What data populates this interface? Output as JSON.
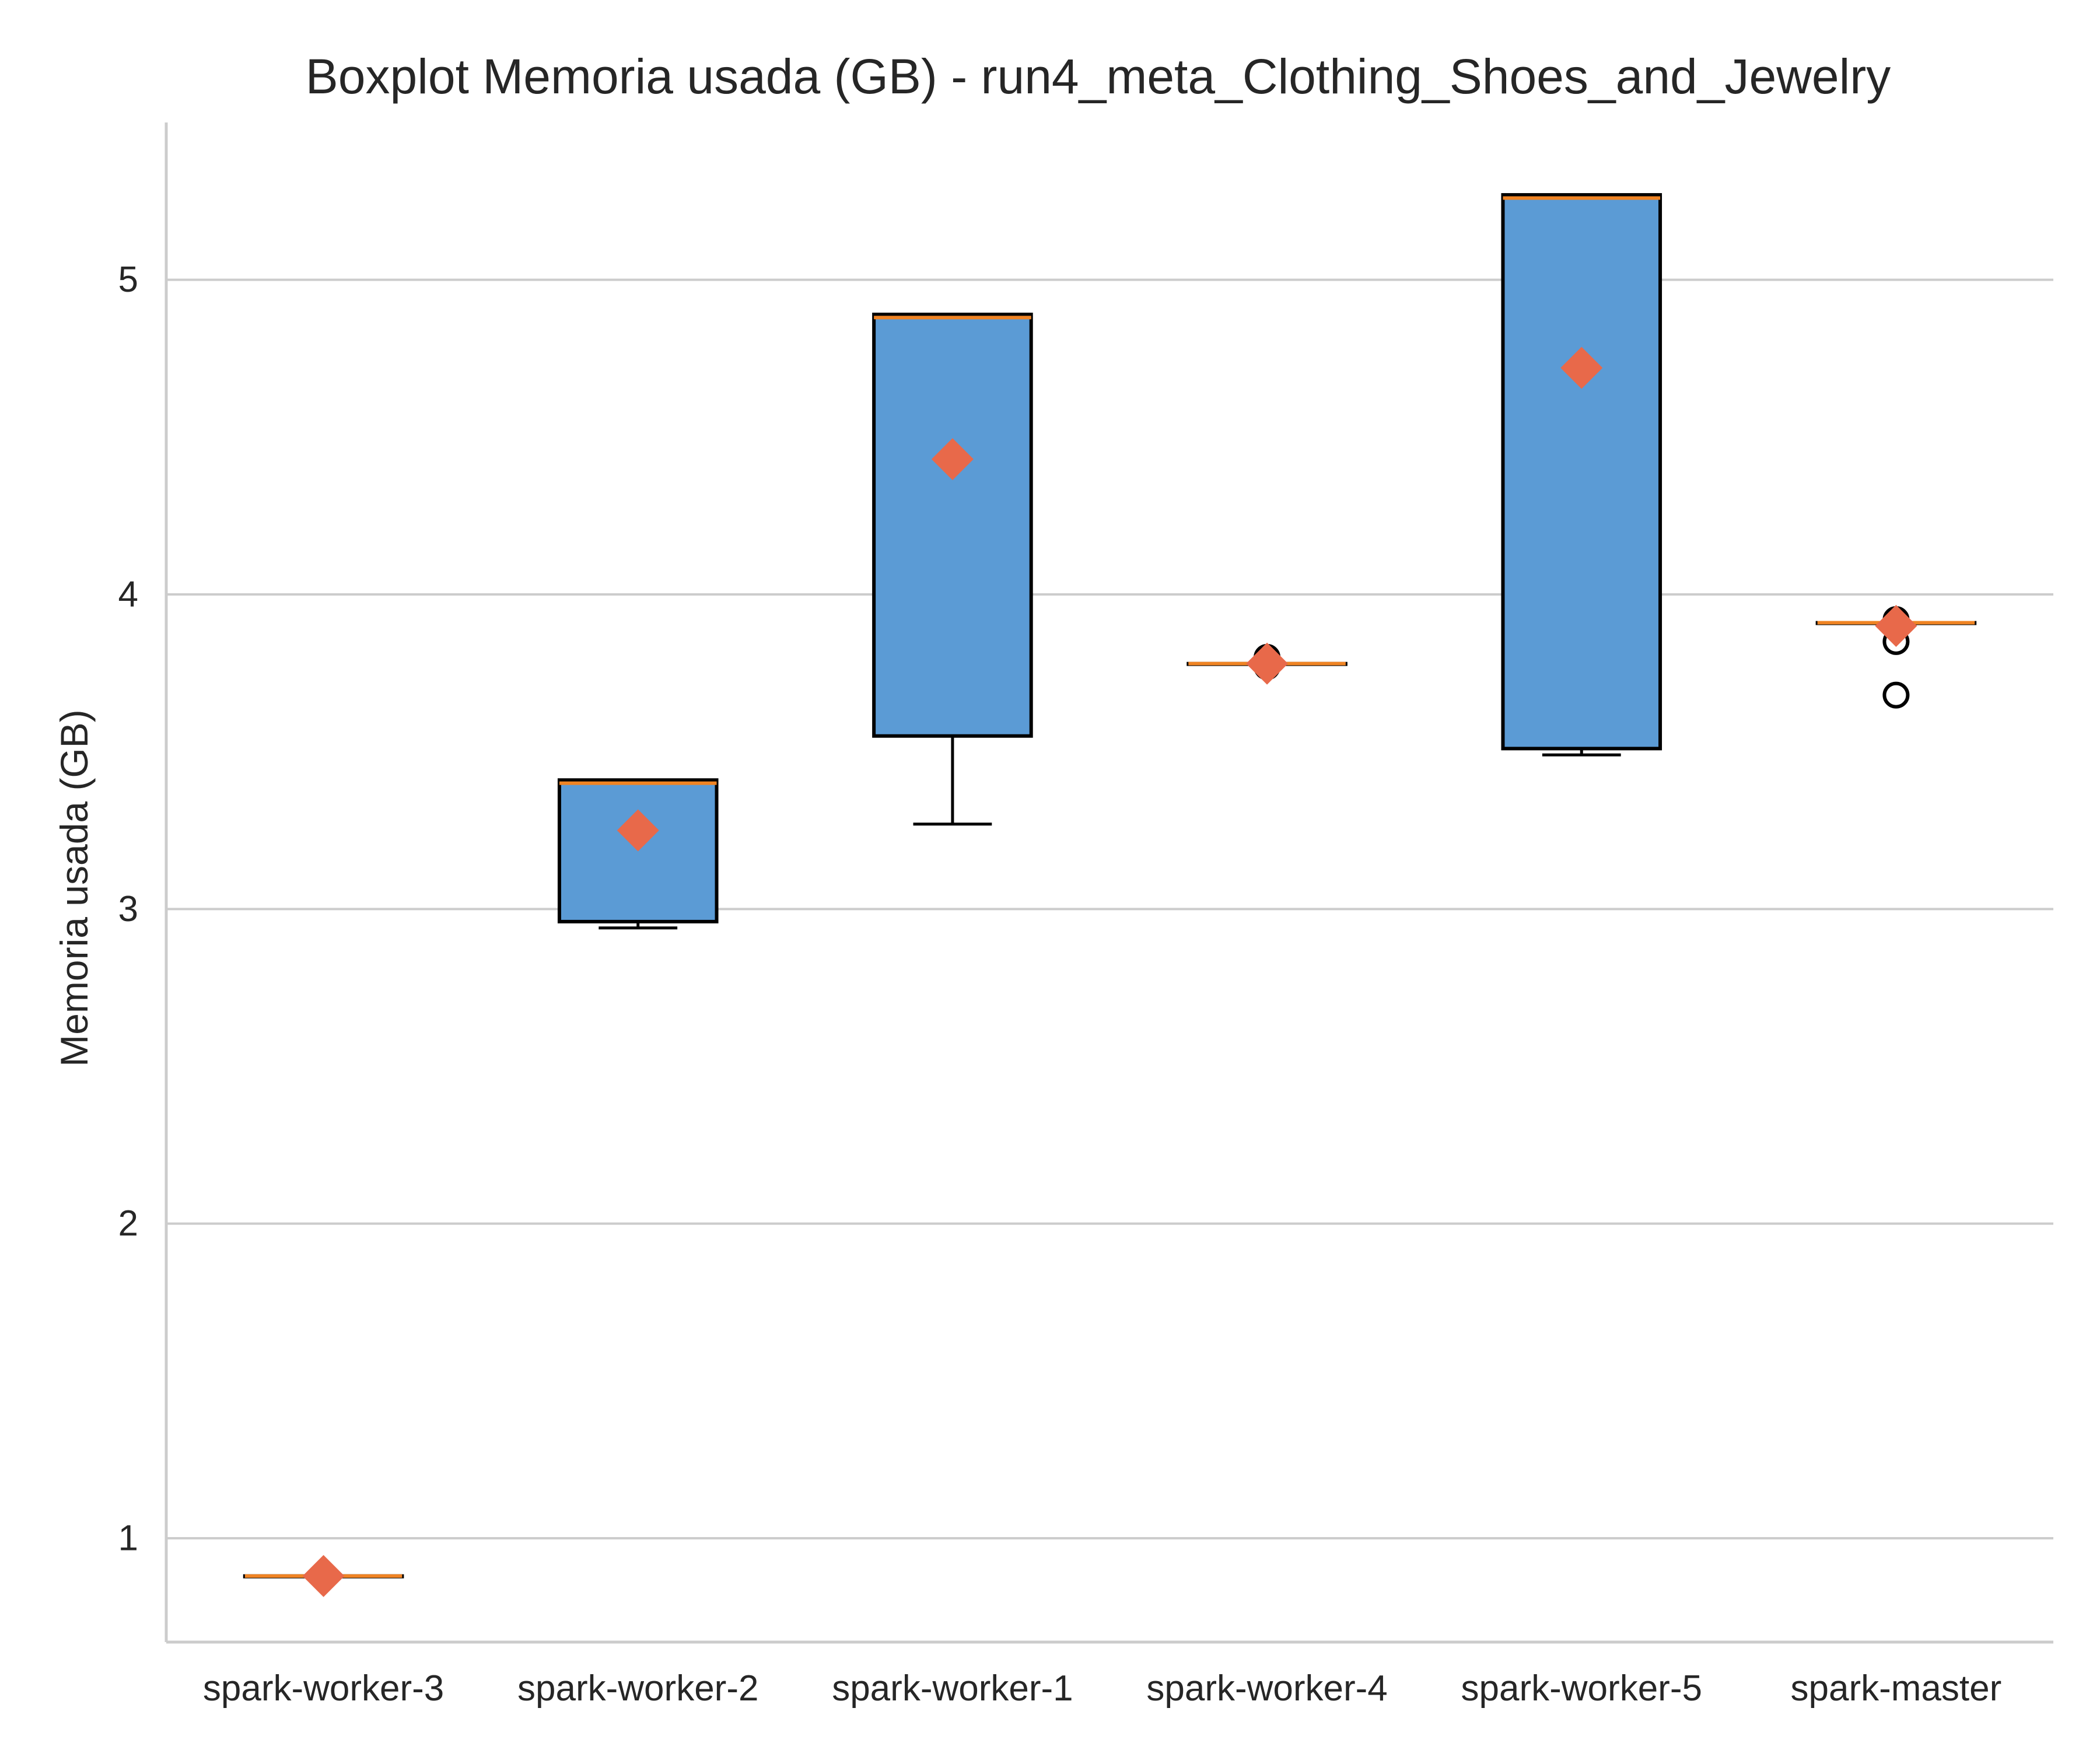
{
  "chart_data": {
    "type": "boxplot",
    "title": "Boxplot Memoria usada (GB) - run4_meta_Clothing_Shoes_and_Jewelry",
    "xlabel": "",
    "ylabel": "Memoria usada (GB)",
    "ylim": [
      0.67,
      5.5
    ],
    "yticks": [
      1,
      2,
      3,
      4,
      5
    ],
    "grid": "y",
    "colors": {
      "box_fill": "#5b9bd5",
      "box_edge": "#000000",
      "median": "#f08424",
      "mean_marker": "#e8694a",
      "grid": "#cccccc",
      "axis": "#cccccc"
    },
    "categories": [
      "spark-worker-3",
      "spark-worker-2",
      "spark-worker-1",
      "spark-worker-4",
      "spark-worker-5",
      "spark-master"
    ],
    "boxes": [
      {
        "name": "spark-worker-3",
        "whisker_low": 0.88,
        "q1": 0.88,
        "median": 0.88,
        "q3": 0.88,
        "whisker_high": 0.88,
        "mean": 0.88,
        "outliers": []
      },
      {
        "name": "spark-worker-2",
        "whisker_low": 2.94,
        "q1": 2.96,
        "median": 3.4,
        "q3": 3.41,
        "whisker_high": 3.41,
        "mean": 3.25,
        "outliers": []
      },
      {
        "name": "spark-worker-1",
        "whisker_low": 3.27,
        "q1": 3.55,
        "median": 4.88,
        "q3": 4.89,
        "whisker_high": 4.89,
        "mean": 4.43,
        "outliers": []
      },
      {
        "name": "spark-worker-4",
        "whisker_low": 3.78,
        "q1": 3.78,
        "median": 3.78,
        "q3": 3.78,
        "whisker_high": 3.78,
        "mean": 3.78,
        "outliers": [
          3.77,
          3.79,
          3.8
        ]
      },
      {
        "name": "spark-worker-5",
        "whisker_low": 3.49,
        "q1": 3.51,
        "median": 5.26,
        "q3": 5.27,
        "whisker_high": 5.27,
        "mean": 4.72,
        "outliers": []
      },
      {
        "name": "spark-master",
        "whisker_low": 3.91,
        "q1": 3.91,
        "median": 3.91,
        "q3": 3.91,
        "whisker_high": 3.91,
        "mean": 3.9,
        "outliers": [
          3.92,
          3.85,
          3.68
        ]
      }
    ]
  }
}
